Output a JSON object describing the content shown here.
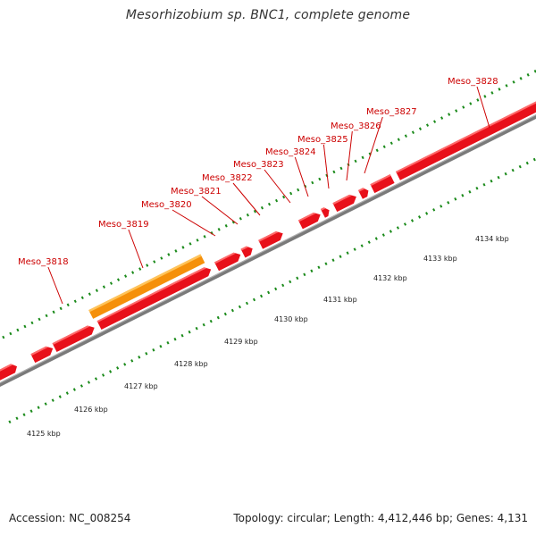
{
  "title": "Mesorhizobium sp. BNC1, complete genome",
  "footer": {
    "accession": "Accession: NC_008254",
    "stats": "Topology: circular; Length: 4,412,446 bp; Genes: 4,131"
  },
  "colors": {
    "gene": "#e8101a",
    "gene_top": "#ff6a6a",
    "highlight": "#f5900a",
    "highlight_top": "#ffc45a",
    "label": "#cc0000",
    "tick": "#1a8a1a",
    "backbone": "#7a7a7a",
    "kbp_text": "#222222"
  },
  "genes": [
    "Meso_3818",
    "Meso_3819",
    "Meso_3820",
    "Meso_3821",
    "Meso_3822",
    "Meso_3823",
    "Meso_3824",
    "Meso_3825",
    "Meso_3826",
    "Meso_3827",
    "Meso_3828"
  ],
  "kbp_ticks": [
    "4125 kbp",
    "4126 kbp",
    "4127 kbp",
    "4128 kbp",
    "4129 kbp",
    "4130 kbp",
    "4131 kbp",
    "4132 kbp",
    "4133 kbp",
    "4134 kbp"
  ]
}
